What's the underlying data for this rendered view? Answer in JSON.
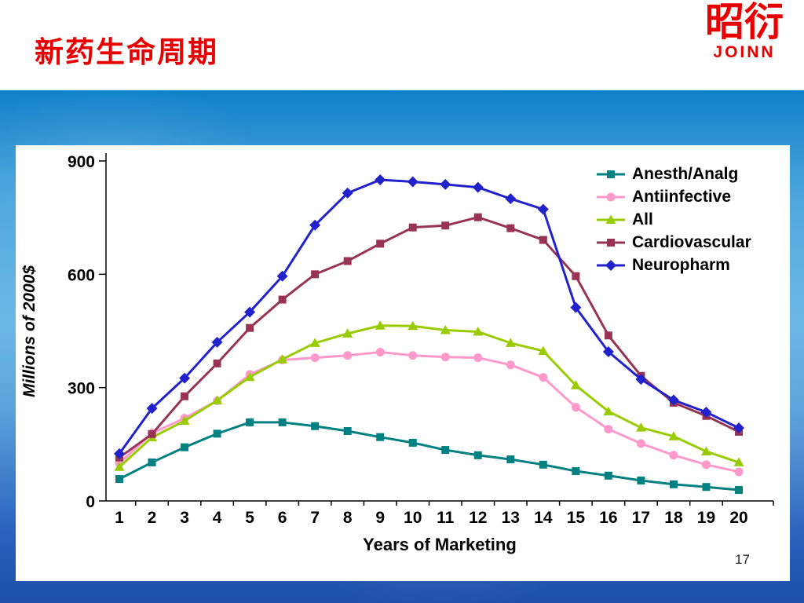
{
  "slide": {
    "title": "新药生命周期",
    "page_number": "17"
  },
  "logo": {
    "glyphs": "昭衍",
    "name": "JOINN",
    "color": "#e60000"
  },
  "chart_data": {
    "type": "line",
    "title": "",
    "xlabel": "Years of Marketing",
    "ylabel": "Millions of 2000$",
    "x": [
      1,
      2,
      3,
      4,
      5,
      6,
      7,
      8,
      9,
      10,
      11,
      12,
      13,
      14,
      15,
      16,
      17,
      18,
      19,
      20
    ],
    "ylim": [
      0,
      900
    ],
    "yticks": [
      0,
      300,
      600,
      900
    ],
    "grid": false,
    "legend_position": "top-right-inside",
    "series": [
      {
        "name": "Anesth/Analg",
        "color": "#008080",
        "marker": "square",
        "values": [
          58,
          102,
          142,
          178,
          208,
          208,
          198,
          185,
          169,
          154,
          135,
          121,
          110,
          96,
          79,
          67,
          54,
          44,
          37,
          29
        ]
      },
      {
        "name": "Antiinfective",
        "color": "#FF99CC",
        "marker": "circle",
        "values": [
          100,
          179,
          219,
          265,
          335,
          373,
          379,
          385,
          394,
          385,
          381,
          379,
          360,
          327,
          248,
          190,
          152,
          121,
          96,
          77
        ]
      },
      {
        "name": "All",
        "color": "#99CC00",
        "marker": "triangle",
        "values": [
          90,
          168,
          212,
          266,
          328,
          375,
          418,
          443,
          464,
          463,
          452,
          448,
          418,
          397,
          306,
          237,
          194,
          171,
          131,
          102
        ]
      },
      {
        "name": "Cardiovascular",
        "color": "#993355",
        "marker": "square",
        "values": [
          115,
          177,
          277,
          364,
          458,
          533,
          600,
          635,
          681,
          724,
          729,
          751,
          722,
          691,
          595,
          438,
          331,
          260,
          225,
          183
        ]
      },
      {
        "name": "Neuropharm",
        "color": "#2222CC",
        "marker": "diamond",
        "values": [
          125,
          245,
          325,
          420,
          500,
          595,
          730,
          815,
          850,
          845,
          838,
          830,
          800,
          772,
          512,
          395,
          322,
          267,
          235,
          193
        ]
      }
    ]
  }
}
